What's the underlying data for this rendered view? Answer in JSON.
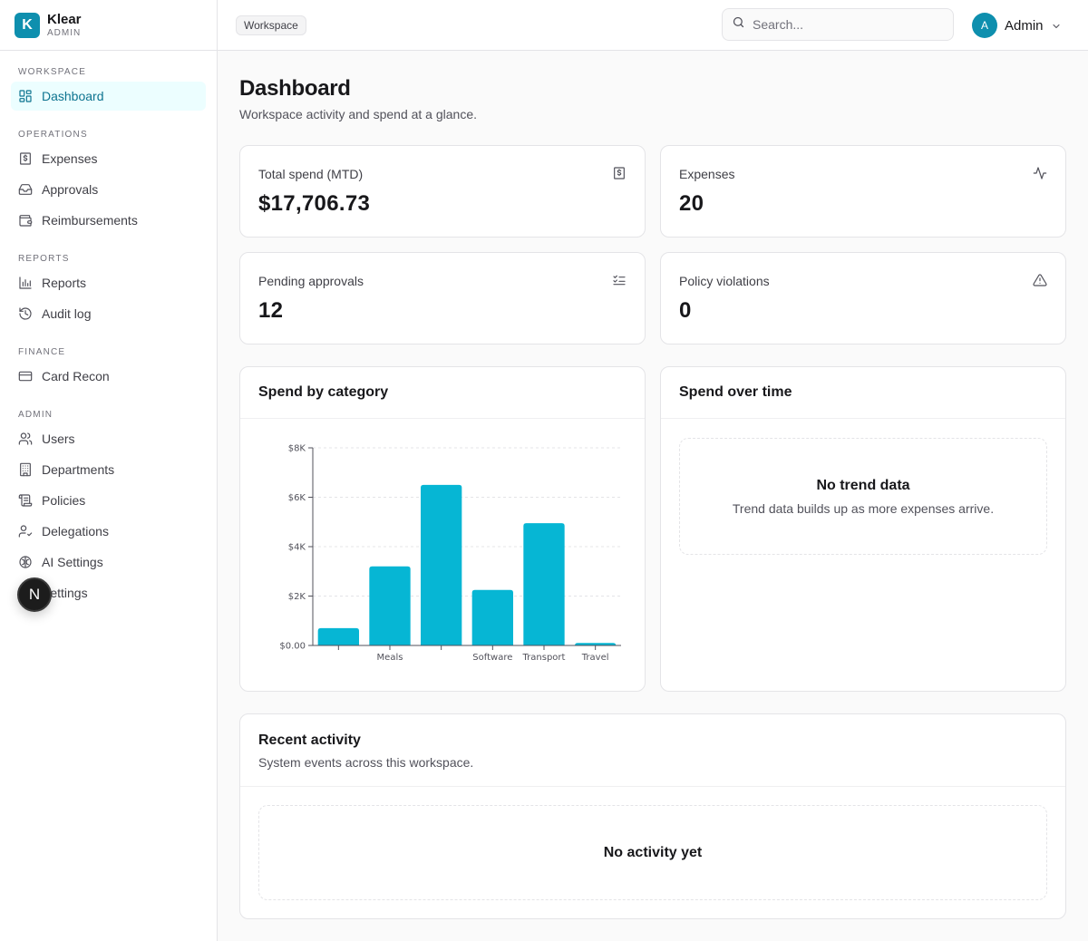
{
  "brand": {
    "initial": "K",
    "name": "Klear",
    "role": "ADMIN"
  },
  "sidebar": {
    "sections": [
      {
        "title": "WORKSPACE",
        "items": [
          {
            "label": "Dashboard",
            "icon": "dashboard-icon",
            "active": true
          }
        ]
      },
      {
        "title": "OPERATIONS",
        "items": [
          {
            "label": "Expenses",
            "icon": "receipt-icon"
          },
          {
            "label": "Approvals",
            "icon": "inbox-icon"
          },
          {
            "label": "Reimbursements",
            "icon": "wallet-icon"
          }
        ]
      },
      {
        "title": "REPORTS",
        "items": [
          {
            "label": "Reports",
            "icon": "bar-chart-icon"
          },
          {
            "label": "Audit log",
            "icon": "history-icon"
          }
        ]
      },
      {
        "title": "FINANCE",
        "items": [
          {
            "label": "Card Recon",
            "icon": "credit-card-icon"
          }
        ]
      },
      {
        "title": "ADMIN",
        "items": [
          {
            "label": "Users",
            "icon": "users-icon"
          },
          {
            "label": "Departments",
            "icon": "building-icon"
          },
          {
            "label": "Policies",
            "icon": "scroll-icon"
          },
          {
            "label": "Delegations",
            "icon": "user-check-icon"
          },
          {
            "label": "AI Settings",
            "icon": "brain-icon"
          },
          {
            "label": "Settings",
            "icon": "settings-icon"
          }
        ]
      }
    ]
  },
  "overlay_badge": "N",
  "header": {
    "workspace_badge": "Workspace",
    "search_placeholder": "Search...",
    "user": {
      "initial": "A",
      "name": "Admin"
    }
  },
  "page": {
    "title": "Dashboard",
    "subtitle": "Workspace activity and spend at a glance."
  },
  "stats": [
    {
      "label": "Total spend (MTD)",
      "value": "$17,706.73",
      "icon": "receipt-icon"
    },
    {
      "label": "Expenses",
      "value": "20",
      "icon": "activity-icon"
    },
    {
      "label": "Pending approvals",
      "value": "12",
      "icon": "list-checks-icon"
    },
    {
      "label": "Policy violations",
      "value": "0",
      "icon": "alert-triangle-icon"
    }
  ],
  "spend_by_category": {
    "title": "Spend by category"
  },
  "spend_over_time": {
    "title": "Spend over time",
    "empty_title": "No trend data",
    "empty_desc": "Trend data builds up as more expenses arrive."
  },
  "recent_activity": {
    "title": "Recent activity",
    "subtitle": "System events across this workspace.",
    "empty_title": "No activity yet"
  },
  "colors": {
    "accent": "#0e8fae",
    "bar": "#06b6d4",
    "active_bg": "#ecfeff",
    "active_text": "#0e7490"
  },
  "chart_data": {
    "type": "bar",
    "categories": [
      "",
      "Meals",
      "",
      "Software",
      "Transport",
      "Travel"
    ],
    "values": [
      700,
      3200,
      6500,
      2250,
      4950,
      100
    ],
    "title": "Spend by category",
    "xlabel": "",
    "ylabel": "",
    "ylim": [
      0,
      8000
    ],
    "yticks": [
      {
        "value": 0,
        "label": "$0.00"
      },
      {
        "value": 2000,
        "label": "$2K"
      },
      {
        "value": 4000,
        "label": "$4K"
      },
      {
        "value": 6000,
        "label": "$6K"
      },
      {
        "value": 8000,
        "label": "$8K"
      }
    ],
    "grid": true,
    "legend": "none"
  }
}
